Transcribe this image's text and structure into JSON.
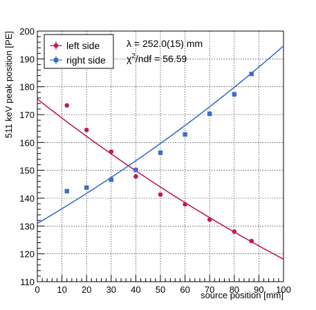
{
  "chart_data": {
    "type": "scatter",
    "xlabel": "source position [mm]",
    "ylabel": "511 keV peak position [PE]",
    "xlim": [
      0,
      100
    ],
    "ylim": [
      110,
      200
    ],
    "x_ticks": [
      "0",
      "10",
      "20",
      "30",
      "40",
      "50",
      "60",
      "70",
      "80",
      "90",
      "100"
    ],
    "y_ticks": [
      "110",
      "120",
      "130",
      "140",
      "150",
      "160",
      "170",
      "180",
      "190",
      "200"
    ],
    "grid": true,
    "legend_position": "top-left",
    "annotations": {
      "lambda": "λ = 252.0(15) mm",
      "chi_prefix": "χ",
      "chi_sup": "2",
      "chi_rest": "/ndf = 56.59"
    },
    "series": [
      {
        "name": "left side",
        "marker": "circle",
        "color": "#c2185b",
        "x": [
          12,
          20,
          30,
          40,
          50,
          60,
          70,
          80,
          87
        ],
        "y": [
          173.3,
          164.5,
          156.7,
          147.8,
          141.3,
          137.8,
          132.3,
          128.0,
          124.6
        ],
        "fit": {
          "type": "exponential",
          "a": 175.6,
          "lambda": 252.0
        }
      },
      {
        "name": "right side",
        "marker": "square",
        "color": "#3a6fc9",
        "x": [
          12,
          20,
          30,
          40,
          50,
          60,
          70,
          80,
          87
        ],
        "y": [
          142.5,
          143.8,
          146.6,
          150.1,
          156.3,
          162.9,
          170.3,
          177.3,
          184.6
        ],
        "fit": {
          "type": "exponential",
          "a": 130.9,
          "lambda": 252.0
        }
      }
    ]
  }
}
